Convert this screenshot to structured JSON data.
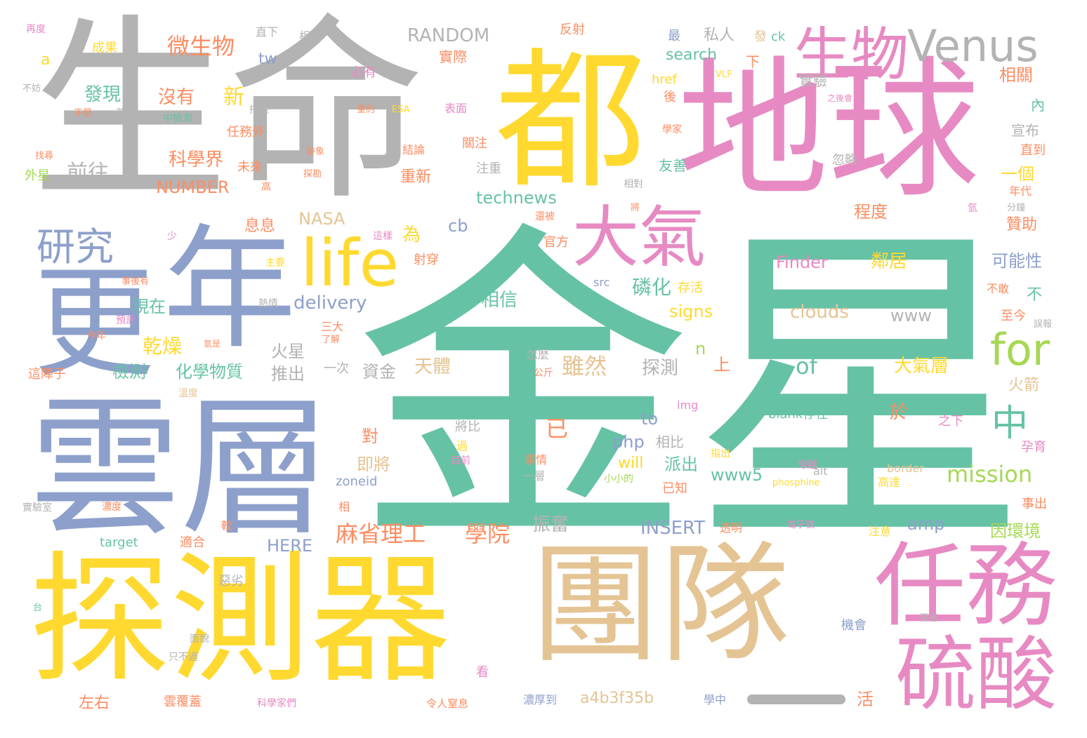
{
  "palette": {
    "green": "#66c2a5",
    "orange": "#fc8d62",
    "blue": "#8da0cb",
    "pink": "#e78ac3",
    "lime": "#a6d854",
    "yellow": "#ffd92f",
    "tan": "#e5c494",
    "gray": "#b3b3b3"
  },
  "words": [
    "金星",
    "生命",
    "都",
    "地球",
    "雲層",
    "年",
    "更",
    "探測器",
    "團隊",
    "任務",
    "硫酸",
    "生物",
    "Venus",
    "大氣",
    "life",
    "for",
    "研究",
    "中",
    "微生物",
    "RANDOM",
    "私人",
    "發現",
    "沒有",
    "新",
    "科學界",
    "前往",
    "NUMBER",
    "未來",
    "任務外",
    "technews",
    "NASA",
    "息息",
    "為",
    "cb",
    "現在",
    "乾燥",
    "磷化",
    "delivery",
    "相信",
    "signs",
    "Finder",
    "鄰居",
    "clouds",
    "www",
    "可能性",
    "不",
    "雖然",
    "化學物質",
    "檢測",
    "火星",
    "推出",
    "資金",
    "天體",
    "探測",
    "大氣層",
    "火箭",
    "已",
    "of",
    "n",
    "上",
    "to",
    "php",
    "will",
    "派出",
    "www5",
    "mission",
    "即將",
    "對",
    "於",
    "相比",
    "麻省理工",
    "學院",
    "振奮",
    "INSERT",
    "HERE",
    "amp",
    "因環境",
    "a4b3f35b",
    "濃厚到",
    "學中",
    "活",
    "左右",
    "雲覆蓋",
    "令人窒息",
    "科學家們",
    "只不過",
    "面貌",
    "惡劣",
    "target",
    "適合",
    "較",
    "相",
    "zoneid",
    "img",
    "blank存在",
    "border",
    "phosphine",
    "alt",
    "高達",
    "穿越",
    "注意",
    "透明",
    "電子號",
    "事出",
    "孕育",
    "之下",
    "將比",
    "過",
    "一層",
    "小小的",
    "已知",
    "指出",
    "事情",
    "目前",
    "公斤",
    "怎麼",
    "一次",
    "三大",
    "了解",
    "射穿",
    "主要",
    "事後有",
    "熱情",
    "預計",
    "今年",
    "氫是",
    "這陣子",
    "溫度",
    "實驗室",
    "濃度",
    "台",
    "外星",
    "找尋",
    "不是",
    "不妨",
    "再度",
    "成果",
    "a",
    "直下",
    "相較",
    "必有",
    "反射",
    "實際",
    "搭乘",
    "重約",
    "ESA",
    "表面",
    "中檢測",
    "結論",
    "關注",
    "注重",
    "重新",
    "跡象",
    "探勘",
    "官方",
    "還被",
    "這樣",
    "少",
    "高",
    "相對",
    "將",
    "最",
    "發",
    "ck",
    "href",
    "後",
    "學家",
    "VLF",
    "search",
    "tw",
    "下",
    "實驗",
    "相關",
    "內",
    "宣布",
    "友善",
    "直到",
    "一個",
    "忽略",
    "年代",
    "分鐘",
    "氫",
    "程度",
    "贊助",
    "不敢",
    "至今",
    "誤報",
    "之後會",
    "兩者",
    "機會",
    "看",
    "存活",
    "src",
    "著"
  ]
}
